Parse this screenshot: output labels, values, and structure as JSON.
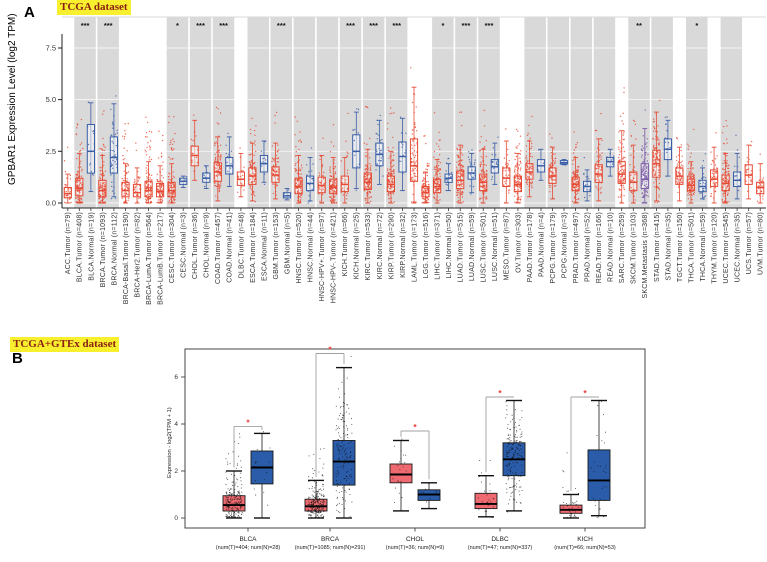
{
  "figure": {
    "panel_a": {
      "panel_label": "A",
      "dataset_label": "TCGA dataset"
    },
    "panel_b": {
      "panel_label": "B",
      "dataset_label": "TCGA+GTEx dataset"
    },
    "colors": {
      "badge_bg": "#f8ef2e",
      "badge_text": "#8a1f14",
      "tumor": "#e64b35",
      "normal": "#3a5fa8",
      "metastasis": "#7b5aa6",
      "panelb_tumor_fill": "#ee6a70",
      "panelb_normal_fill": "#2a5caa",
      "band_gray": "#d9d9d9",
      "bracket_gray": "#a0a0a0",
      "star_red": "#e8362d"
    }
  },
  "chart_data": [
    {
      "type": "boxplot-jitter",
      "panel": "A",
      "title_badge": "TCGA dataset",
      "ylabel": "GPBAR1 Expression Level (log2 TPM)",
      "ytick_labels": [
        "0.0",
        "2.5",
        "5.0",
        "7.5"
      ],
      "ytick_values": [
        0,
        2.5,
        5,
        7.5
      ],
      "ylim": [
        0,
        8.2
      ],
      "legend": "off",
      "grid": "horizontal-on-bands",
      "group_colors": {
        "t": "#e64b35",
        "n": "#3a5fa8",
        "m": "#7b5aa6"
      },
      "columns_schema": [
        "label",
        "group",
        "median",
        "q1",
        "q3",
        "whisker_low",
        "whisker_high",
        "points_max",
        "n"
      ],
      "columns": [
        [
          "ACC.Tumor (n=79)",
          "t",
          0.45,
          0.25,
          0.75,
          0,
          1.4,
          2.7,
          79
        ],
        [
          "BLCA.Tumor (n=408)",
          "t",
          0.7,
          0.35,
          1.2,
          0,
          2.4,
          4.1,
          408
        ],
        [
          "BLCA.Normal (n=19)",
          "n",
          2.5,
          1.45,
          3.8,
          0.55,
          4.85,
          4.9,
          19
        ],
        [
          "BRCA.Tumor (n=1093)",
          "t",
          0.6,
          0.3,
          1.1,
          0,
          2.3,
          4.5,
          1093
        ],
        [
          "BRCA.Normal (n=112)",
          "n",
          2.2,
          1.45,
          3.2,
          0.3,
          4.8,
          5.2,
          112
        ],
        [
          "BRCA-Basal.Tumor (n=190)",
          "t",
          0.6,
          0.3,
          1.0,
          0,
          1.9,
          3.9,
          190
        ],
        [
          "BRCA-Her2.Tumor (n=82)",
          "t",
          0.5,
          0.3,
          0.9,
          0,
          1.7,
          2.9,
          82
        ],
        [
          "BRCA-LumA.Tumor (n=564)",
          "t",
          0.6,
          0.3,
          1.05,
          0,
          2.0,
          4.2,
          564
        ],
        [
          "BRCA-LumB.Tumor (n=217)",
          "t",
          0.55,
          0.3,
          0.95,
          0,
          1.8,
          3.5,
          217
        ],
        [
          "CESC.Tumor (n=304)",
          "t",
          0.6,
          0.3,
          1.0,
          0,
          1.9,
          4.2,
          304
        ],
        [
          "CESC.Normal (n=3)",
          "n",
          1.05,
          0.9,
          1.2,
          0.75,
          1.3,
          1.3,
          3
        ],
        [
          "CHOL.Tumor (n=36)",
          "t",
          2.3,
          1.8,
          2.75,
          1.1,
          4.0,
          4.3,
          36
        ],
        [
          "CHOL.Normal (n=9)",
          "n",
          1.2,
          1.0,
          1.45,
          0.7,
          1.8,
          1.8,
          9
        ],
        [
          "COAD.Tumor (n=457)",
          "t",
          1.5,
          1.05,
          1.95,
          0.1,
          3.2,
          4.7,
          457
        ],
        [
          "COAD.Normal (n=41)",
          "n",
          1.8,
          1.4,
          2.2,
          0.8,
          3.2,
          3.4,
          41
        ],
        [
          "DLBC.Tumor (n=48)",
          "t",
          1.15,
          0.85,
          1.5,
          0.3,
          2.4,
          2.7,
          48
        ],
        [
          "ESCA.Tumor (n=184)",
          "t",
          1.3,
          0.9,
          1.7,
          0.1,
          2.9,
          4.1,
          184
        ],
        [
          "ESCA.Normal (n=11)",
          "n",
          1.9,
          1.5,
          2.3,
          1.0,
          3.0,
          3.0,
          11
        ],
        [
          "GBM.Tumor (n=153)",
          "t",
          1.35,
          1.0,
          1.75,
          0.2,
          2.9,
          4.4,
          153
        ],
        [
          "GBM.Normal (n=5)",
          "n",
          0.35,
          0.25,
          0.5,
          0.15,
          0.7,
          0.7,
          5
        ],
        [
          "HNSC.Tumor (n=520)",
          "t",
          0.8,
          0.45,
          1.2,
          0,
          2.3,
          4.2,
          520
        ],
        [
          "HNSC.Normal (n=44)",
          "n",
          0.95,
          0.6,
          1.3,
          0.1,
          2.2,
          2.7,
          44
        ],
        [
          "HNSC-HPV+.Tumor (n=97)",
          "t",
          0.85,
          0.5,
          1.25,
          0,
          2.3,
          3.2,
          97
        ],
        [
          "HNSC-HPV-.Tumor (n=421)",
          "t",
          0.75,
          0.45,
          1.15,
          0,
          2.2,
          3.8,
          421
        ],
        [
          "KICH.Tumor (n=66)",
          "t",
          0.9,
          0.55,
          1.3,
          0,
          2.2,
          4.4,
          66
        ],
        [
          "KICH.Normal (n=25)",
          "n",
          2.5,
          1.7,
          3.3,
          0.7,
          4.4,
          4.6,
          25
        ],
        [
          "KIRC.Tumor (n=533)",
          "t",
          1.0,
          0.65,
          1.45,
          0,
          2.6,
          4.7,
          533
        ],
        [
          "KIRC.Normal (n=72)",
          "n",
          2.35,
          1.8,
          2.9,
          0.9,
          4.0,
          4.3,
          72
        ],
        [
          "KIRP.Tumor (n=290)",
          "t",
          0.9,
          0.55,
          1.3,
          0,
          2.5,
          4.6,
          290
        ],
        [
          "KIRP.Normal (n=32)",
          "n",
          2.25,
          1.5,
          2.95,
          0.6,
          4.1,
          4.2,
          32
        ],
        [
          "LAML.Tumor (n=173)",
          "t",
          1.8,
          1.05,
          3.1,
          0,
          5.6,
          6.6,
          173
        ],
        [
          "LGG.Tumor (n=516)",
          "t",
          0.5,
          0.3,
          0.8,
          0,
          1.5,
          3.3,
          516
        ],
        [
          "LIHC.Tumor (n=371)",
          "t",
          0.8,
          0.5,
          1.15,
          0,
          2.1,
          4.4,
          371
        ],
        [
          "LIHC.Normal (n=50)",
          "n",
          1.2,
          1.0,
          1.4,
          0.6,
          1.9,
          2.2,
          50
        ],
        [
          "LUAD.Tumor (n=515)",
          "t",
          1.1,
          0.7,
          1.55,
          0,
          2.8,
          4.4,
          515
        ],
        [
          "LUAD.Normal (n=59)",
          "n",
          1.45,
          1.15,
          1.75,
          0.5,
          2.4,
          2.6,
          59
        ],
        [
          "LUSC.Tumor (n=501)",
          "t",
          1.0,
          0.6,
          1.4,
          0,
          2.6,
          4.5,
          501
        ],
        [
          "LUSC.Normal (n=51)",
          "n",
          1.75,
          1.45,
          2.1,
          0.9,
          2.9,
          3.2,
          51
        ],
        [
          "MESO.Tumor (n=87)",
          "t",
          1.2,
          0.8,
          1.7,
          0,
          3.0,
          3.6,
          87
        ],
        [
          "OV.Tumor (n=303)",
          "t",
          0.9,
          0.55,
          1.3,
          0,
          2.4,
          3.6,
          303
        ],
        [
          "PAAD.Tumor (n=178)",
          "t",
          1.5,
          1.15,
          1.9,
          0.3,
          3.0,
          4.2,
          178
        ],
        [
          "PAAD.Normal (n=4)",
          "n",
          1.8,
          1.5,
          2.1,
          1.1,
          2.6,
          2.6,
          4
        ],
        [
          "PCPG.Tumor (n=179)",
          "t",
          1.3,
          0.95,
          1.7,
          0.2,
          2.7,
          3.4,
          179
        ],
        [
          "PCPG.Normal (n=3)",
          "n",
          1.95,
          1.88,
          2.05,
          1.85,
          2.1,
          2.1,
          3
        ],
        [
          "PRAD.Tumor (n=497)",
          "t",
          0.9,
          0.6,
          1.25,
          0,
          2.2,
          3.5,
          497
        ],
        [
          "PRAD.Normal (n=52)",
          "n",
          0.8,
          0.55,
          1.05,
          0.1,
          1.6,
          2.2,
          52
        ],
        [
          "READ.Tumor (n=166)",
          "t",
          1.4,
          1.0,
          1.85,
          0.1,
          3.1,
          4.4,
          166
        ],
        [
          "READ.Normal (n=10)",
          "n",
          2.0,
          1.75,
          2.2,
          1.3,
          2.6,
          2.6,
          10
        ],
        [
          "SARC.Tumor (n=259)",
          "t",
          1.4,
          0.95,
          2.0,
          0,
          3.5,
          5.6,
          259
        ],
        [
          "SKCM.Tumor (n=103)",
          "t",
          1.0,
          0.6,
          1.5,
          0,
          2.8,
          4.0,
          103
        ],
        [
          "SKCM.Metastasis (n=368)",
          "m",
          1.15,
          0.7,
          1.9,
          0,
          3.6,
          4.5,
          368
        ],
        [
          "STAD.Tumor (n=415)",
          "t",
          1.9,
          1.25,
          2.55,
          0.1,
          4.4,
          5.0,
          415
        ],
        [
          "STAD.Normal (n=35)",
          "n",
          2.6,
          2.1,
          3.1,
          1.3,
          4.0,
          4.2,
          35
        ],
        [
          "TGCT.Tumor (n=150)",
          "t",
          1.3,
          0.9,
          1.7,
          0.1,
          2.7,
          3.2,
          150
        ],
        [
          "THCA.Tumor (n=501)",
          "t",
          0.85,
          0.6,
          1.15,
          0,
          2.0,
          3.6,
          501
        ],
        [
          "THCA.Normal (n=59)",
          "n",
          0.8,
          0.55,
          1.1,
          0.2,
          1.7,
          2.4,
          59
        ],
        [
          "THYM.Tumor (n=120)",
          "t",
          1.15,
          0.8,
          1.6,
          0,
          2.7,
          3.4,
          120
        ],
        [
          "UCEC.Tumor (n=545)",
          "t",
          0.95,
          0.6,
          1.35,
          0,
          2.4,
          4.0,
          545
        ],
        [
          "UCEC.Normal (n=35)",
          "n",
          1.1,
          0.8,
          1.5,
          0.2,
          2.4,
          3.3,
          35
        ],
        [
          "UCS.Tumor (n=57)",
          "t",
          1.35,
          0.9,
          1.85,
          0.2,
          2.8,
          3.0,
          57
        ],
        [
          "UVM.Tumor (n=80)",
          "t",
          0.75,
          0.45,
          1.0,
          0,
          1.9,
          2.4,
          80
        ]
      ],
      "pair_bands_1indexed": [
        [
          2,
          3
        ],
        [
          4,
          5
        ],
        [
          10,
          11
        ],
        [
          12,
          13
        ],
        [
          14,
          15
        ],
        [
          17,
          18
        ],
        [
          19,
          20
        ],
        [
          21,
          22
        ],
        [
          23,
          24
        ],
        [
          25,
          26
        ],
        [
          27,
          28
        ],
        [
          29,
          30
        ],
        [
          33,
          34
        ],
        [
          35,
          36
        ],
        [
          37,
          38
        ],
        [
          41,
          42
        ],
        [
          43,
          44
        ],
        [
          45,
          46
        ],
        [
          47,
          48
        ],
        [
          50,
          51
        ],
        [
          52,
          53
        ],
        [
          55,
          56
        ],
        [
          58,
          59
        ]
      ],
      "significance": [
        {
          "cols": [
            2,
            3
          ],
          "stars": "***"
        },
        {
          "cols": [
            4,
            5
          ],
          "stars": "***"
        },
        {
          "cols": [
            10,
            11
          ],
          "stars": "*"
        },
        {
          "cols": [
            12,
            13
          ],
          "stars": "***"
        },
        {
          "cols": [
            14,
            15
          ],
          "stars": "***"
        },
        {
          "cols": [
            19,
            20
          ],
          "stars": "***"
        },
        {
          "cols": [
            25,
            26
          ],
          "stars": "***"
        },
        {
          "cols": [
            27,
            28
          ],
          "stars": "***"
        },
        {
          "cols": [
            29,
            30
          ],
          "stars": "***"
        },
        {
          "cols": [
            33,
            34
          ],
          "stars": "*"
        },
        {
          "cols": [
            35,
            36
          ],
          "stars": "***"
        },
        {
          "cols": [
            37,
            38
          ],
          "stars": "***"
        },
        {
          "cols": [
            50,
            51
          ],
          "stars": "**"
        },
        {
          "cols": [
            55,
            56
          ],
          "stars": "*"
        }
      ]
    },
    {
      "type": "boxplot-jitter",
      "panel": "B",
      "title_badge": "TCGA+GTEx dataset",
      "ylabel": "Expression - log2(TPM + 1)",
      "ytick_labels": [
        "0",
        "2",
        "4",
        "6"
      ],
      "ytick_values": [
        0,
        2,
        4,
        6
      ],
      "ylim": [
        0,
        7.2
      ],
      "legend": "off",
      "grid": "off",
      "groups_schema": {
        "tumor_and_normal_arrays": [
          "median",
          "q1",
          "q3",
          "whisker_low",
          "whisker_high",
          "points_max",
          "n"
        ]
      },
      "groups": [
        {
          "name": "BLCA",
          "counts_label": "(num(T)=404; num(N)=28)",
          "sig": "*",
          "sig_y": 3.9,
          "tumor": [
            0.55,
            0.3,
            0.95,
            0,
            2.0,
            3.6,
            404
          ],
          "normal": [
            2.15,
            1.45,
            2.85,
            0,
            3.6,
            3.7,
            28
          ]
        },
        {
          "name": "BRCA",
          "counts_label": "(num(T)=1085; num(N)=291)",
          "sig": "*",
          "sig_y": 7.0,
          "tumor": [
            0.5,
            0.3,
            0.8,
            0,
            1.6,
            3.0,
            1085
          ],
          "normal": [
            2.4,
            1.4,
            3.3,
            0,
            6.4,
            6.9,
            291
          ]
        },
        {
          "name": "CHOL",
          "counts_label": "(num(T)=36; num(N)=9)",
          "sig": "*",
          "sig_y": 3.7,
          "tumor": [
            1.85,
            1.5,
            2.3,
            0.3,
            3.3,
            3.4,
            36
          ],
          "normal": [
            1.0,
            0.75,
            1.2,
            0.4,
            1.5,
            1.5,
            9
          ]
        },
        {
          "name": "DLBC",
          "counts_label": "(num(T)=47; num(N)=337)",
          "sig": "*",
          "sig_y": 5.15,
          "tumor": [
            0.6,
            0.4,
            1.05,
            0.05,
            1.8,
            2.5,
            47
          ],
          "normal": [
            2.5,
            1.8,
            3.2,
            0.3,
            5.0,
            5.0,
            337
          ]
        },
        {
          "name": "KICH",
          "counts_label": "(num(T)=66; num(N)=53)",
          "sig": "*",
          "sig_y": 5.15,
          "tumor": [
            0.35,
            0.2,
            0.55,
            0,
            1.0,
            2.8,
            66
          ],
          "normal": [
            1.6,
            0.75,
            2.9,
            0.1,
            5.0,
            5.0,
            53
          ]
        }
      ]
    }
  ]
}
